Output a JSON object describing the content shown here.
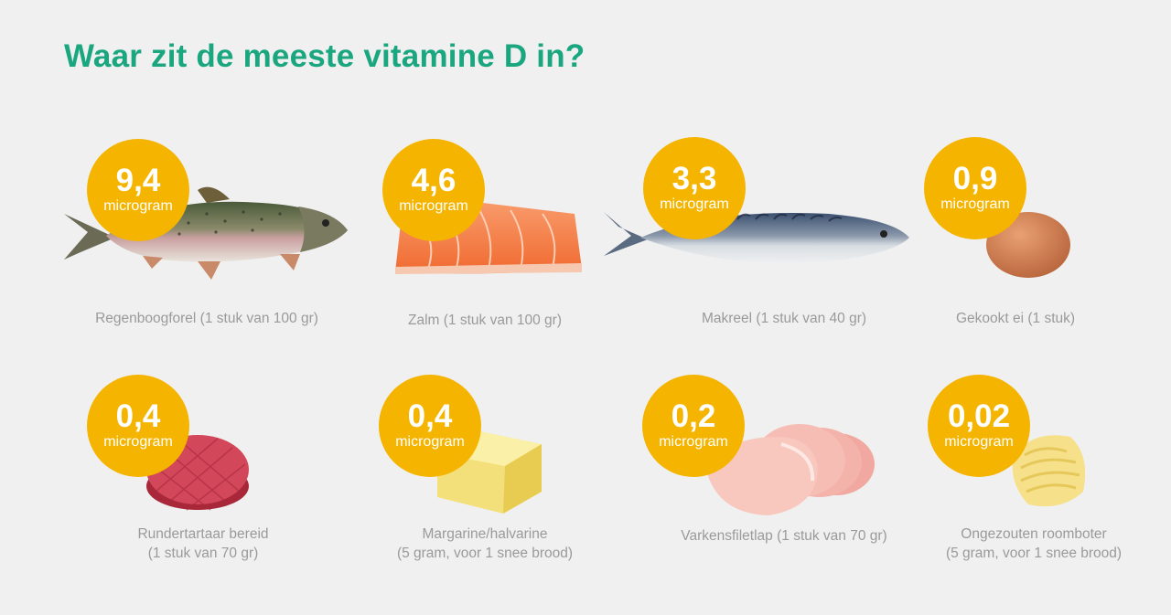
{
  "title": "Waar zit de meeste vitamine D in?",
  "accent_color": "#1aa67f",
  "badge_color": "#f4b400",
  "items": [
    {
      "value": "9,4",
      "unit": "microgram",
      "caption_line1": "Regenboogforel (1 stuk van 100 gr)",
      "caption_line2": "",
      "image": "rainbow-trout"
    },
    {
      "value": "4,6",
      "unit": "microgram",
      "caption_line1": "Zalm (1 stuk van 100 gr)",
      "caption_line2": "",
      "image": "salmon-fillet"
    },
    {
      "value": "3,3",
      "unit": "microgram",
      "caption_line1": "Makreel (1 stuk van 40 gr)",
      "caption_line2": "",
      "image": "mackerel"
    },
    {
      "value": "0,9",
      "unit": "microgram",
      "caption_line1": "Gekookt ei (1 stuk)",
      "caption_line2": "",
      "image": "boiled-egg"
    },
    {
      "value": "0,4",
      "unit": "microgram",
      "caption_line1": "Rundertartaar bereid",
      "caption_line2": "(1 stuk van 70 gr)",
      "image": "beef-patty"
    },
    {
      "value": "0,4",
      "unit": "microgram",
      "caption_line1": "Margarine/halvarine",
      "caption_line2": "(5 gram, voor 1 snee brood)",
      "image": "margarine-block"
    },
    {
      "value": "0,2",
      "unit": "microgram",
      "caption_line1": "Varkensfiletlap (1 stuk van 70 gr)",
      "caption_line2": "",
      "image": "pork-chops"
    },
    {
      "value": "0,02",
      "unit": "microgram",
      "caption_line1": "Ongezouten roomboter",
      "caption_line2": "(5 gram, voor 1 snee brood)",
      "image": "butter-curl"
    }
  ]
}
